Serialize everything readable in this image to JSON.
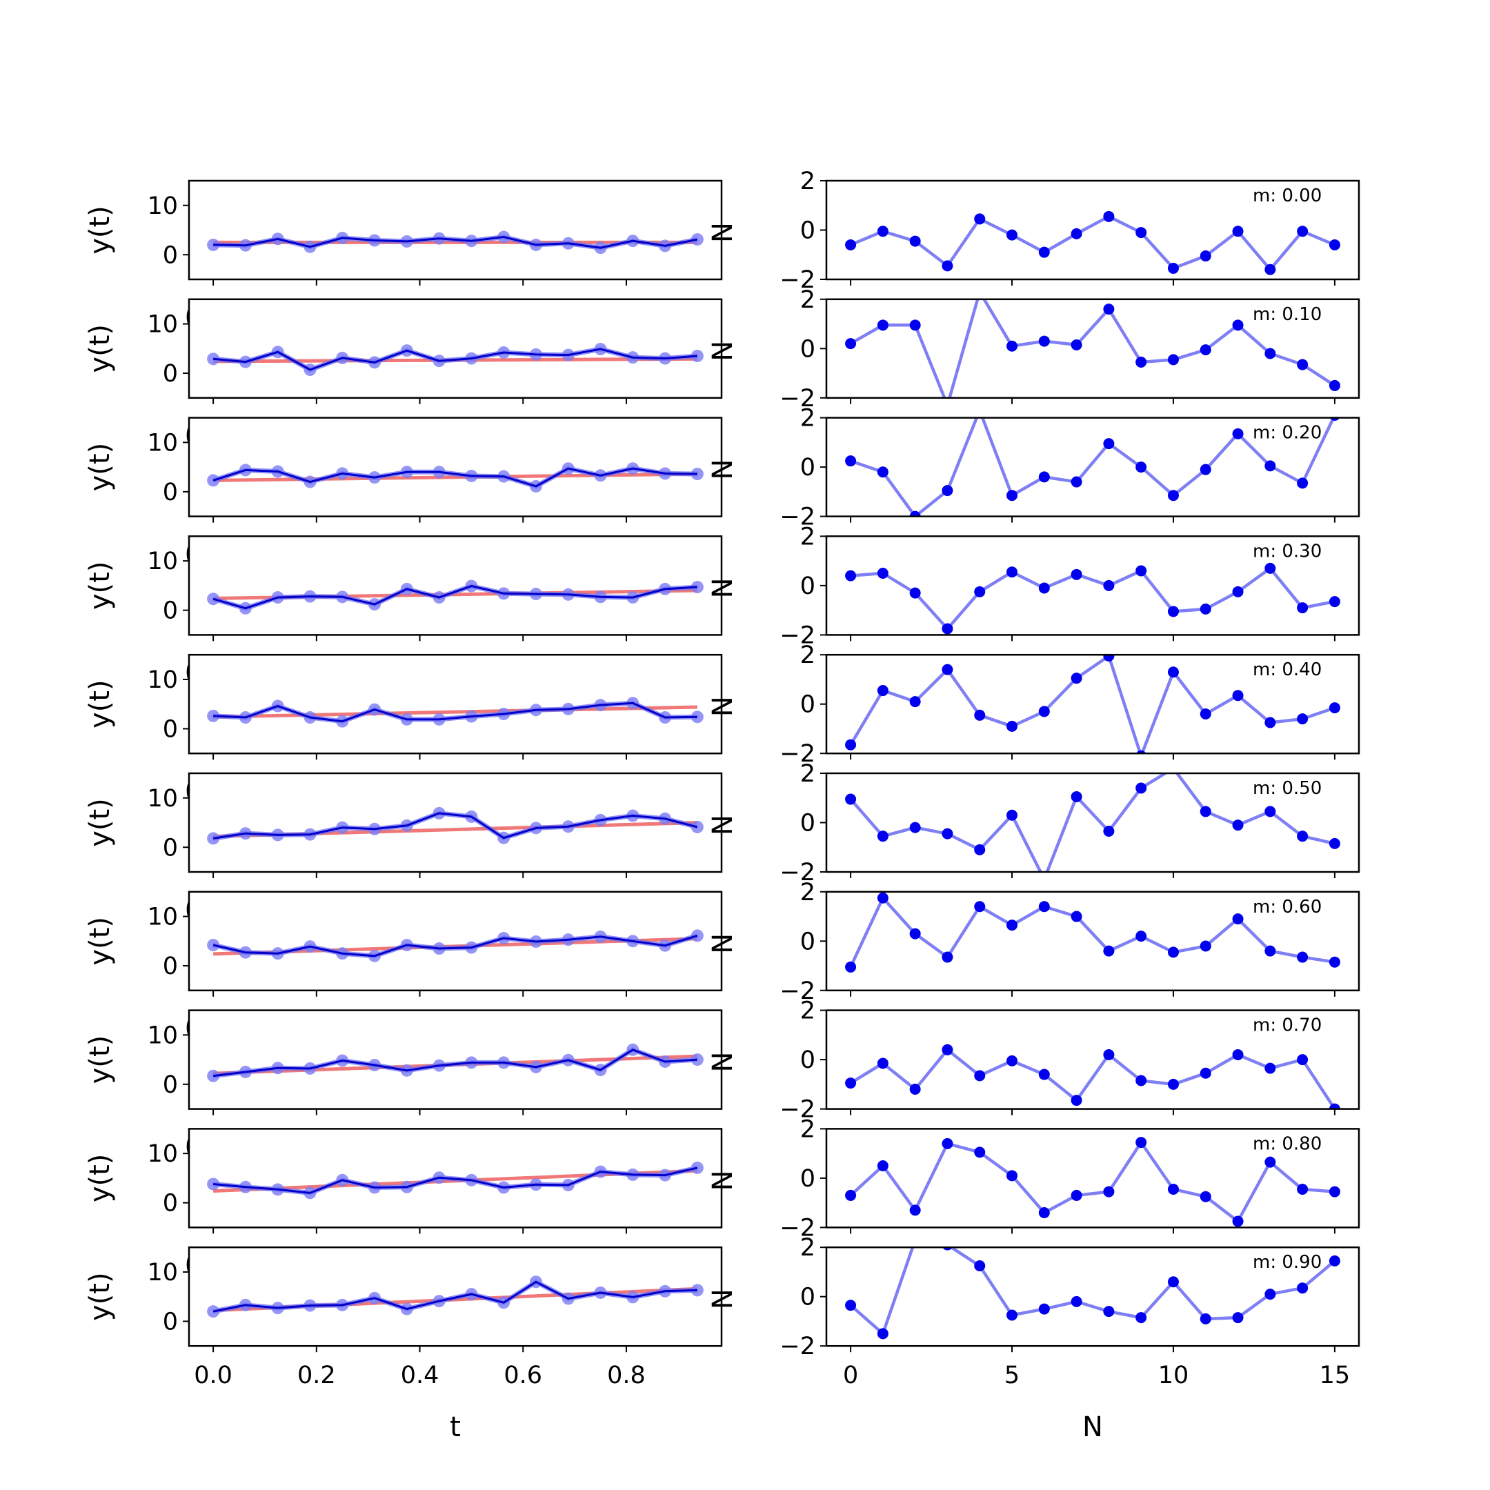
{
  "chart_data": {
    "type": "line",
    "layout": "10 rows x 2 columns of subplots",
    "colors": {
      "fit_line": "#f07878",
      "noisy_series": "#6b6bf0",
      "noisy_markers": "#7b7bf5",
      "true_series": "#0000cc",
      "residual_line": "#7f7ff5",
      "residual_markers": "#0000ee"
    },
    "left": {
      "xlabel": "t",
      "ylabel": "y(t)",
      "xlim": [
        -0.0469,
        0.9844
      ],
      "ylim": [
        -5,
        15
      ],
      "xticks": [
        0.0,
        0.2,
        0.4,
        0.6,
        0.8
      ],
      "xtick_labels": [
        "0.0",
        "0.2",
        "0.4",
        "0.6",
        "0.8"
      ],
      "yticks": [
        0,
        10
      ],
      "ytick_labels": [
        "0",
        "10"
      ],
      "t": [
        0,
        0.0625,
        0.125,
        0.1875,
        0.25,
        0.3125,
        0.375,
        0.4375,
        0.5,
        0.5625,
        0.625,
        0.6875,
        0.75,
        0.8125,
        0.875,
        0.9375
      ],
      "clipped_label_fragments": [
        "0",
        "N"
      ]
    },
    "right": {
      "xlabel": "N",
      "xlim": [
        -0.75,
        15.75
      ],
      "ylim": [
        -2,
        2
      ],
      "xticks": [
        0,
        5,
        10,
        15
      ],
      "xtick_labels": [
        "0",
        "5",
        "10",
        "15"
      ],
      "yticks": [
        -2,
        0,
        2
      ],
      "ytick_labels": [
        "−2",
        "0",
        "2"
      ],
      "n": [
        0,
        1,
        2,
        3,
        4,
        5,
        6,
        7,
        8,
        9,
        10,
        11,
        12,
        13,
        14,
        15
      ]
    },
    "rows": [
      {
        "m_label": "m: 0.00",
        "fit": [
          2.5,
          2.5
        ],
        "y": [
          2.0,
          1.9,
          3.2,
          1.6,
          3.4,
          2.9,
          2.7,
          3.3,
          2.8,
          3.6,
          2.0,
          2.3,
          1.4,
          2.8,
          1.8,
          3.1
        ],
        "residuals": [
          -0.6,
          -0.05,
          -0.45,
          -1.45,
          0.45,
          -0.2,
          -0.9,
          -0.15,
          0.55,
          -0.1,
          -1.55,
          -1.05,
          -0.05,
          -1.6,
          -0.05,
          -0.6
        ]
      },
      {
        "m_label": "m: 0.10",
        "fit": [
          2.4,
          2.9
        ],
        "y": [
          2.9,
          2.3,
          4.3,
          0.7,
          3.1,
          2.2,
          4.6,
          2.5,
          3.0,
          4.2,
          3.8,
          3.7,
          4.9,
          3.2,
          3.0,
          3.5
        ],
        "residuals": [
          0.2,
          0.95,
          0.95,
          -2.3,
          2.3,
          0.1,
          0.3,
          0.15,
          1.6,
          -0.55,
          -0.45,
          -0.05,
          0.95,
          -0.2,
          -0.65,
          -1.5
        ]
      },
      {
        "m_label": "m: 0.20",
        "fit": [
          2.3,
          3.6
        ],
        "y": [
          2.3,
          4.4,
          4.1,
          2.0,
          3.7,
          2.9,
          4.0,
          4.0,
          3.2,
          3.1,
          1.1,
          4.7,
          3.3,
          4.7,
          3.7,
          3.6
        ],
        "residuals": [
          0.25,
          -0.2,
          -2.0,
          -0.95,
          2.3,
          -1.15,
          -0.4,
          -0.6,
          0.95,
          0.0,
          -1.15,
          -0.1,
          1.35,
          0.05,
          -0.65,
          2.1
        ]
      },
      {
        "m_label": "m: 0.30",
        "fit": [
          2.4,
          4.0
        ],
        "y": [
          2.3,
          0.4,
          2.6,
          2.8,
          2.7,
          1.2,
          4.3,
          2.6,
          4.9,
          3.4,
          3.3,
          3.2,
          2.7,
          2.6,
          4.3,
          4.7
        ],
        "residuals": [
          0.4,
          0.5,
          -0.3,
          -1.75,
          -0.25,
          0.55,
          -0.1,
          0.45,
          0.0,
          0.6,
          -1.05,
          -0.95,
          -0.25,
          0.7,
          -0.9,
          -0.65
        ]
      },
      {
        "m_label": "m: 0.40",
        "fit": [
          2.4,
          4.4
        ],
        "y": [
          2.6,
          2.3,
          4.6,
          2.3,
          1.5,
          3.9,
          1.9,
          1.9,
          2.5,
          3.0,
          3.8,
          4.0,
          4.8,
          5.2,
          2.3,
          2.4
        ],
        "residuals": [
          -1.65,
          0.55,
          0.1,
          1.4,
          -0.45,
          -0.9,
          -0.3,
          1.05,
          1.95,
          -2.1,
          1.3,
          -0.4,
          0.35,
          -0.75,
          -0.6,
          -0.15
        ]
      },
      {
        "m_label": "m: 0.50",
        "fit": [
          2.2,
          5.0
        ],
        "y": [
          1.8,
          2.8,
          2.5,
          2.6,
          4.0,
          3.7,
          4.4,
          6.9,
          6.2,
          1.9,
          3.9,
          4.2,
          5.5,
          6.4,
          5.8,
          4.1
        ],
        "residuals": [
          0.95,
          -0.55,
          -0.2,
          -0.45,
          -1.1,
          0.3,
          -2.3,
          1.05,
          -0.35,
          1.4,
          2.2,
          0.45,
          -0.1,
          0.45,
          -0.55,
          -0.85
        ]
      },
      {
        "m_label": "m: 0.60",
        "fit": [
          2.4,
          5.5
        ],
        "y": [
          4.2,
          2.7,
          2.5,
          3.9,
          2.5,
          2.0,
          4.2,
          3.5,
          3.7,
          5.6,
          4.9,
          5.3,
          5.9,
          5.0,
          4.1,
          6.1
        ],
        "residuals": [
          -1.05,
          1.75,
          0.3,
          -0.65,
          1.4,
          0.65,
          1.4,
          1.0,
          -0.4,
          0.2,
          -0.45,
          -0.2,
          0.9,
          -0.4,
          -0.65,
          -0.85
        ]
      },
      {
        "m_label": "m: 0.70",
        "fit": [
          2.2,
          5.7
        ],
        "y": [
          1.7,
          2.5,
          3.3,
          3.2,
          4.8,
          3.9,
          2.8,
          3.8,
          4.4,
          4.4,
          3.5,
          4.9,
          2.9,
          7.0,
          4.6,
          5.0
        ],
        "residuals": [
          -0.95,
          -0.15,
          -1.2,
          0.4,
          -0.65,
          -0.05,
          -0.6,
          -1.65,
          0.2,
          -0.85,
          -1.0,
          -0.55,
          0.2,
          -0.35,
          0.0,
          -2.0
        ]
      },
      {
        "m_label": "m: 0.80",
        "fit": [
          2.4,
          6.5
        ],
        "y": [
          3.8,
          3.2,
          2.7,
          2.0,
          4.6,
          3.1,
          3.2,
          5.1,
          4.6,
          3.1,
          3.7,
          3.6,
          6.3,
          5.7,
          5.6,
          7.1
        ],
        "residuals": [
          -0.7,
          0.5,
          -1.3,
          1.4,
          1.05,
          0.1,
          -1.4,
          -0.7,
          -0.55,
          1.45,
          -0.45,
          -0.75,
          -1.75,
          0.65,
          -0.45,
          -0.55
        ]
      },
      {
        "m_label": "m: 0.90",
        "fit": [
          2.2,
          6.6
        ],
        "y": [
          2.0,
          3.3,
          2.7,
          3.2,
          3.3,
          4.7,
          2.5,
          4.1,
          5.5,
          3.8,
          8.0,
          4.6,
          5.8,
          4.9,
          6.1,
          6.3
        ],
        "residuals": [
          -0.35,
          -1.5,
          2.3,
          2.1,
          1.25,
          -0.75,
          -0.5,
          -0.2,
          -0.6,
          -0.85,
          0.6,
          -0.9,
          -0.85,
          0.1,
          0.35,
          1.45
        ]
      }
    ]
  }
}
